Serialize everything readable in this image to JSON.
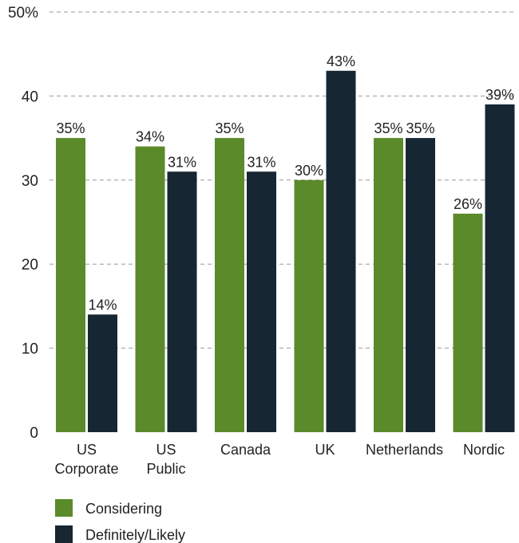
{
  "chart_data": {
    "type": "bar",
    "categories": [
      [
        "US",
        "Corporate"
      ],
      [
        "US",
        "Public"
      ],
      [
        "Canada"
      ],
      [
        "UK"
      ],
      [
        "Netherlands"
      ],
      [
        "Nordic"
      ]
    ],
    "series": [
      {
        "name": "Considering",
        "color": "#5b8a2b",
        "values": [
          35,
          34,
          35,
          30,
          35,
          26
        ],
        "labels": [
          "35%",
          "34%",
          "35%",
          "30%",
          "35%",
          "26%"
        ]
      },
      {
        "name": "Definitely/Likely",
        "color": "#172633",
        "values": [
          14,
          31,
          31,
          43,
          35,
          39
        ],
        "labels": [
          "14%",
          "31%",
          "31%",
          "43%",
          "35%",
          "39%"
        ]
      }
    ],
    "y_ticks": [
      0,
      10,
      20,
      30,
      40,
      50
    ],
    "y_tick_labels": [
      "0",
      "10",
      "20",
      "30",
      "40",
      "50%"
    ],
    "ylim": [
      0,
      50
    ],
    "grid": true,
    "legend_position": "bottom-left",
    "title": "",
    "xlabel": "",
    "ylabel": ""
  }
}
